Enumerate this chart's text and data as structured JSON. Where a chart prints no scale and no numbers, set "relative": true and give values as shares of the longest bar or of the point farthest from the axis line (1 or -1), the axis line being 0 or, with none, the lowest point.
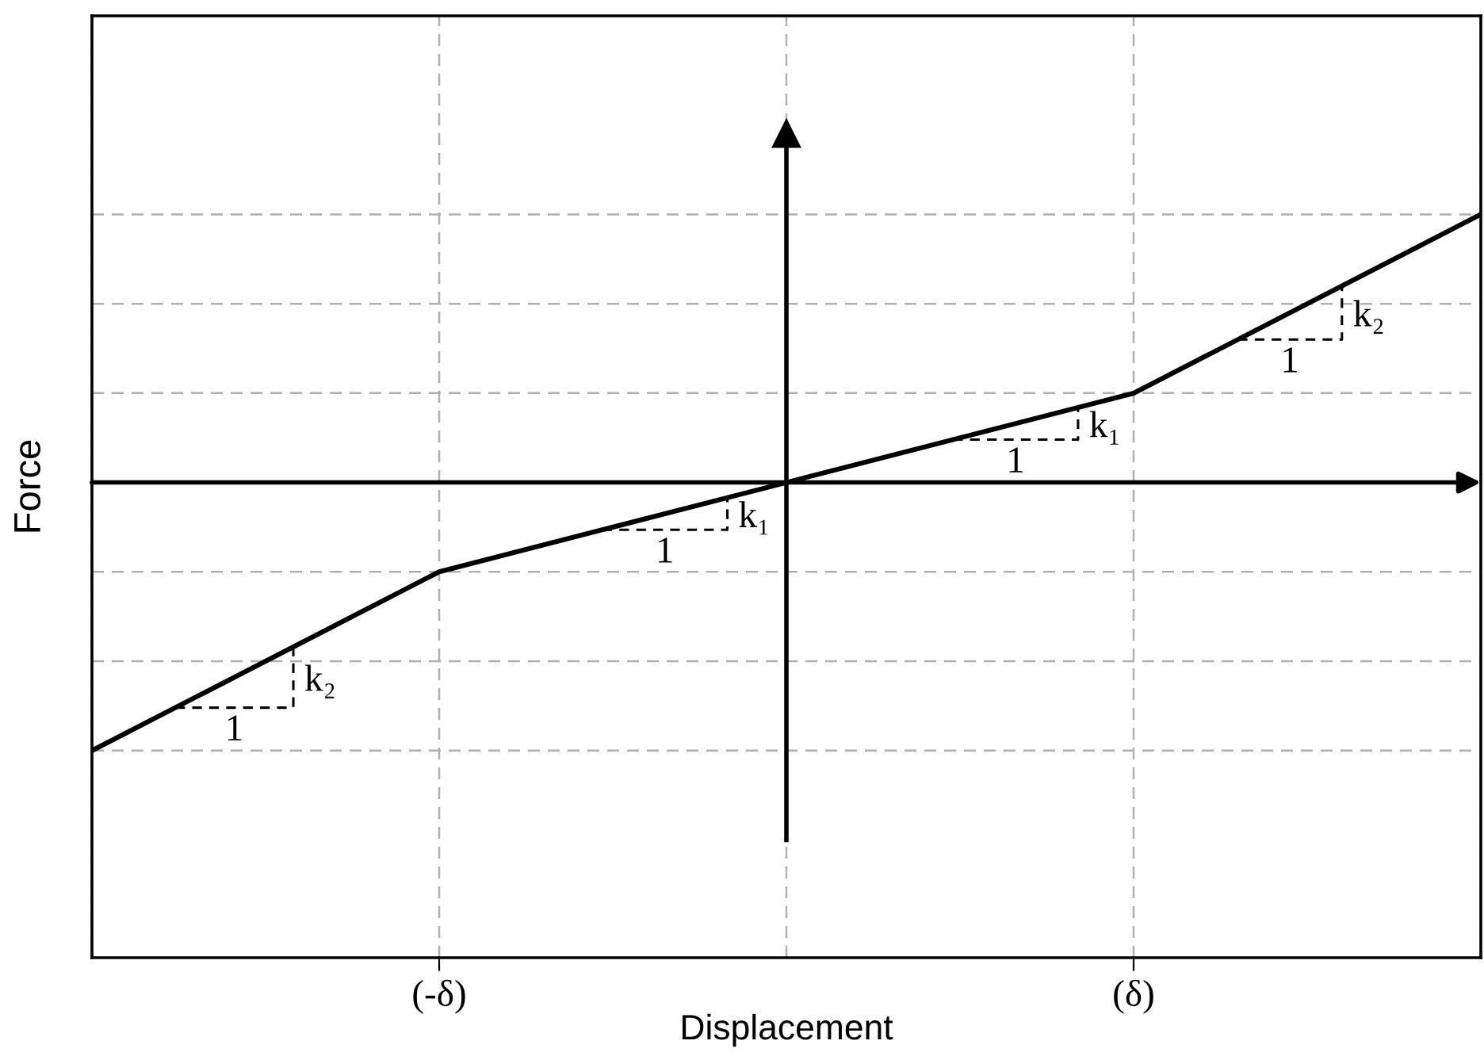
{
  "chart_data": {
    "type": "line",
    "xlabel": "Displacement",
    "ylabel": "Force",
    "categories": [
      null,
      "(-δ)",
      null,
      "(δ)",
      null
    ],
    "series": [
      {
        "color": "#000000",
        "values": [
          -1,
          -0.333,
          0,
          0.333,
          1
        ]
      }
    ],
    "relative": true,
    "tick_labels": "x",
    "grid": true,
    "marker": "none",
    "line_style": "solid",
    "annotations": [
      "k₂",
      "1",
      "k₁",
      "1",
      "k₁",
      "1",
      "k₂",
      "1"
    ]
  }
}
